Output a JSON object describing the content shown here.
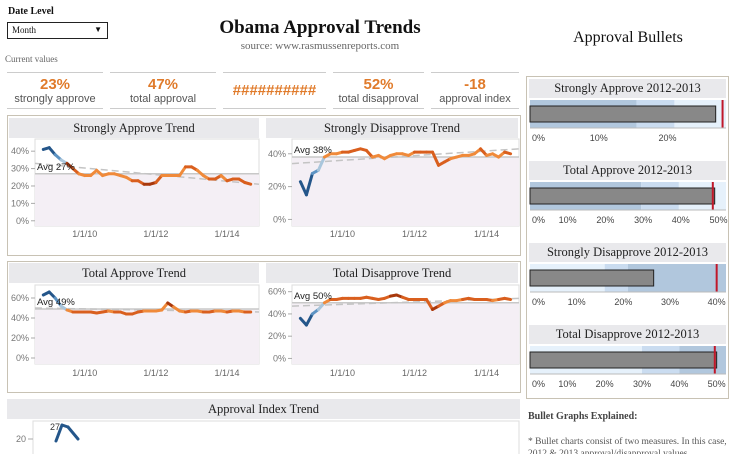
{
  "filter": {
    "label": "Date Level",
    "value": "Month"
  },
  "header": {
    "title": "Obama Approval Trends",
    "source": "source:   www.rasmussenreports.com",
    "current_label": "Current values"
  },
  "kpis": [
    {
      "value": "23%",
      "label": "strongly approve"
    },
    {
      "value": "47%",
      "label": "total approval"
    },
    {
      "value": "##########",
      "label": ""
    },
    {
      "value": "52%",
      "label": "total disapproval"
    },
    {
      "value": "-18",
      "label": "approval index"
    }
  ],
  "colors": {
    "accent": "#e07b2b",
    "blue": "#2f6a9f",
    "dark_red": "#a8380c",
    "target": "#c0182a",
    "bar": "#888888"
  },
  "right": {
    "title": "Approval Bullets",
    "explained_heading": "Bullet Graphs Explained:",
    "explained_text": "* Bullet charts consist of two measures.  In this case, 2012 & 2013 approval/disapproval values"
  },
  "dates": [
    "2008-11",
    "2009-01",
    "2009-03",
    "2009-05",
    "2009-07",
    "2009-09",
    "2009-11",
    "2010-01",
    "2010-03",
    "2010-05",
    "2010-07",
    "2010-09",
    "2010-11",
    "2011-01",
    "2011-03",
    "2011-05",
    "2011-07",
    "2011-09",
    "2011-11",
    "2012-01",
    "2012-03",
    "2012-05",
    "2012-07",
    "2012-09",
    "2012-11",
    "2013-01",
    "2013-03",
    "2013-05",
    "2013-07",
    "2013-09",
    "2013-11",
    "2014-01",
    "2014-03",
    "2014-05",
    "2014-07",
    "2014-09"
  ],
  "chart_data": [
    {
      "type": "line",
      "title": "Strongly Approve Trend",
      "avg_label": "Avg 27%",
      "avg": 27,
      "trend": [
        33,
        21
      ],
      "ylim": [
        -3,
        47
      ],
      "yticks": [
        0,
        10,
        20,
        30,
        40
      ],
      "xticks": [
        "1/1/10",
        "1/1/12",
        "1/1/14"
      ],
      "values": [
        41,
        42,
        38,
        35,
        33,
        30,
        27,
        26,
        26,
        29,
        26,
        27,
        27,
        26,
        25,
        23,
        23,
        21,
        21,
        22,
        26,
        26,
        26,
        26,
        31,
        31,
        29,
        26,
        24,
        24,
        26,
        23,
        24,
        24,
        22,
        21
      ]
    },
    {
      "type": "line",
      "title": "Strongly Disapprove Trend",
      "avg_label": "Avg 38%",
      "avg": 38,
      "trend": [
        34,
        43
      ],
      "ylim": [
        -4,
        49
      ],
      "yticks": [
        0,
        20,
        40
      ],
      "xticks": [
        "1/1/10",
        "1/1/12",
        "1/1/14"
      ],
      "values": [
        23,
        15,
        28,
        30,
        38,
        40,
        40,
        41,
        41,
        42,
        43,
        42,
        38,
        39,
        37,
        39,
        40,
        40,
        39,
        41,
        41,
        41,
        41,
        33,
        35,
        37,
        38,
        39,
        39,
        40,
        43,
        39,
        40,
        38,
        41,
        40
      ]
    },
    {
      "type": "line",
      "title": "Total Approve Trend",
      "avg_label": "Avg 49%",
      "avg": 49,
      "trend": [
        50,
        46
      ],
      "ylim": [
        -6,
        73
      ],
      "yticks": [
        0,
        20,
        40,
        60
      ],
      "xticks": [
        "1/1/10",
        "1/1/12",
        "1/1/14"
      ],
      "values": [
        63,
        66,
        60,
        52,
        48,
        46,
        46,
        46,
        46,
        45,
        46,
        47,
        46,
        46,
        44,
        44,
        46,
        47,
        47,
        47,
        48,
        55,
        51,
        47,
        46,
        47,
        47,
        46,
        46,
        47,
        47,
        46,
        47,
        47,
        46,
        46
      ]
    },
    {
      "type": "line",
      "title": "Total Disapprove Trend",
      "avg_label": "Avg 50%",
      "avg": 50,
      "trend": [
        47,
        54
      ],
      "ylim": [
        -5,
        66
      ],
      "yticks": [
        0,
        20,
        40,
        60
      ],
      "xticks": [
        "1/1/10",
        "1/1/12",
        "1/1/14"
      ],
      "values": [
        36,
        30,
        40,
        44,
        50,
        53,
        53,
        54,
        54,
        54,
        54,
        55,
        54,
        53,
        54,
        56,
        57,
        55,
        53,
        53,
        53,
        53,
        44,
        47,
        50,
        52,
        52,
        53,
        54,
        53,
        53,
        53,
        52,
        53,
        54,
        53
      ]
    },
    {
      "type": "line",
      "title": "Approval Index Trend",
      "yticks": [
        20
      ],
      "peak_label": "27",
      "values": [
        19,
        27,
        26,
        20
      ]
    }
  ],
  "bullets": [
    {
      "title": "Strongly Approve 2012-2013",
      "value": 27,
      "target": 28,
      "max": 28.5,
      "bands": [
        15.5,
        21,
        28.5
      ],
      "dark_first": true,
      "ticks": [
        0,
        10,
        20
      ]
    },
    {
      "title": "Total Approve 2012-2013",
      "value": 49,
      "target": 48.5,
      "max": 52,
      "bands": [
        29.5,
        39.5,
        52
      ],
      "dark_first": true,
      "ticks": [
        0,
        10,
        20,
        30,
        40,
        50
      ]
    },
    {
      "title": "Strongly Disapprove 2012-2013",
      "value": 26.5,
      "target": 40,
      "max": 42,
      "bands": [
        16,
        21,
        42
      ],
      "dark_first": false,
      "ticks": [
        0,
        10,
        20,
        30,
        40
      ]
    },
    {
      "title": "Total Disapprove 2012-2013",
      "value": 50,
      "target": 49.5,
      "max": 52.5,
      "bands": [
        30,
        40,
        52.5
      ],
      "dark_first": false,
      "ticks": [
        0,
        10,
        20,
        30,
        40,
        50
      ]
    }
  ]
}
